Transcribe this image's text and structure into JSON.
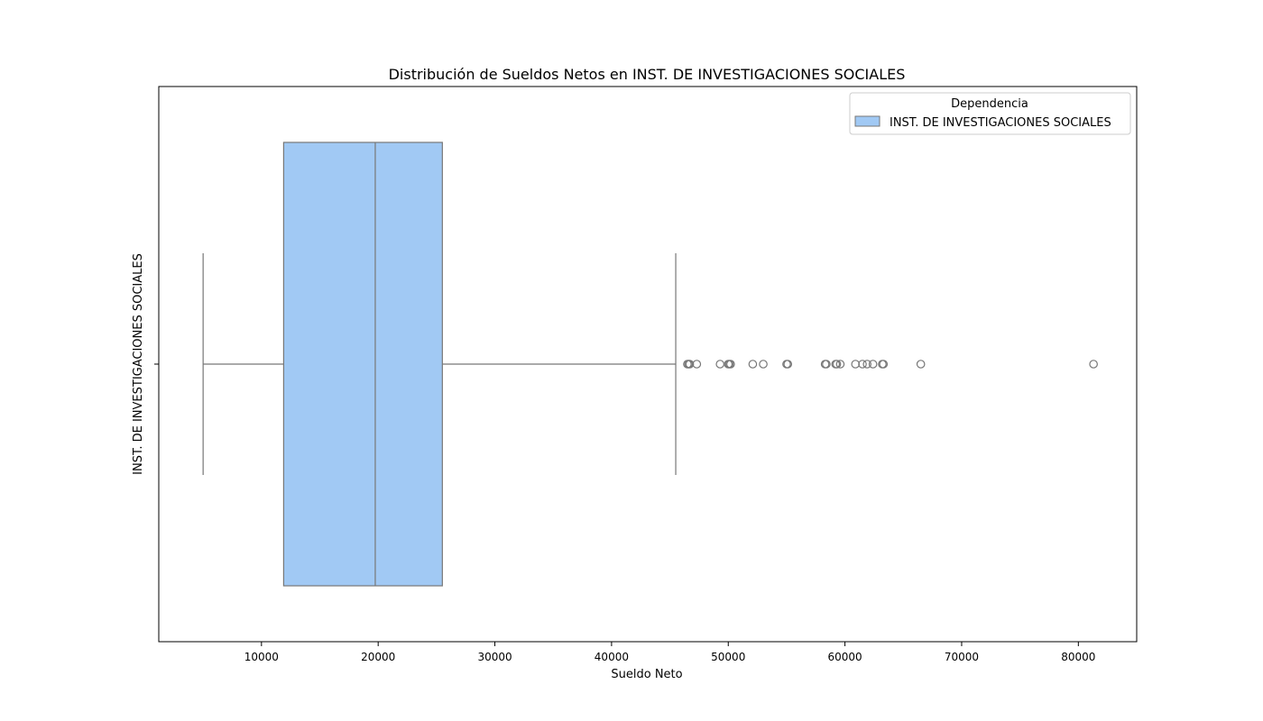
{
  "chart_data": {
    "type": "boxplot",
    "orientation": "horizontal",
    "title": "Distribución de Sueldos Netos en INST. DE INVESTIGACIONES SOCIALES",
    "xlabel": "Sueldo Neto",
    "ylabel": "INST. DE INVESTIGACIONES SOCIALES",
    "xlim": [
      1200,
      85000
    ],
    "x_ticks": [
      10000,
      20000,
      30000,
      40000,
      50000,
      60000,
      70000,
      80000
    ],
    "x_tick_labels": [
      "10000",
      "20000",
      "30000",
      "40000",
      "50000",
      "60000",
      "70000",
      "80000"
    ],
    "categories": [
      "INST. DE INVESTIGACIONES SOCIALES"
    ],
    "grid": false,
    "legend": {
      "title": "Dependencia",
      "placement": "top-right",
      "entries": [
        "INST. DE INVESTIGACIONES SOCIALES"
      ]
    },
    "series": [
      {
        "name": "INST. DE INVESTIGACIONES SOCIALES",
        "color": "#a1c9f4",
        "edge_color": "#777777",
        "whisker_low": 5000,
        "q1": 11900,
        "median": 19750,
        "q3": 25500,
        "whisker_high": 45500,
        "outliers": [
          46500,
          46600,
          46700,
          47300,
          49300,
          50000,
          50100,
          50200,
          52100,
          53000,
          55000,
          55100,
          58300,
          58400,
          59200,
          59300,
          59600,
          60900,
          61500,
          61900,
          62400,
          63200,
          63300,
          66500,
          81300
        ]
      }
    ]
  }
}
